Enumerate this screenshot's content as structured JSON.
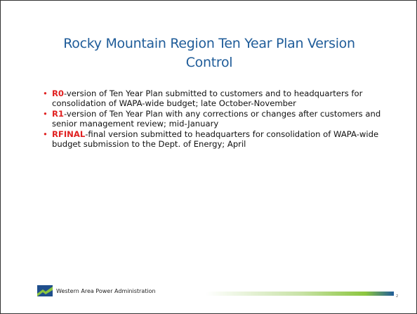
{
  "title": "Rocky Mountain Region Ten Year Plan Version Control",
  "bullets": [
    {
      "term": "R0",
      "text": "-version of Ten Year Plan submitted to customers and to headquarters for consolidation of WAPA-wide budget; late October-November"
    },
    {
      "term": "R1",
      "text": "-version of Ten Year Plan with any corrections or changes after customers and senior management review; mid-January"
    },
    {
      "term": "RFINAL",
      "text": "-final version submitted to headquarters for consolidation of WAPA-wide budget submission to the Dept. of Energy; April"
    }
  ],
  "footer": {
    "organization": "Western Area Power Administration",
    "page_number": "2"
  }
}
